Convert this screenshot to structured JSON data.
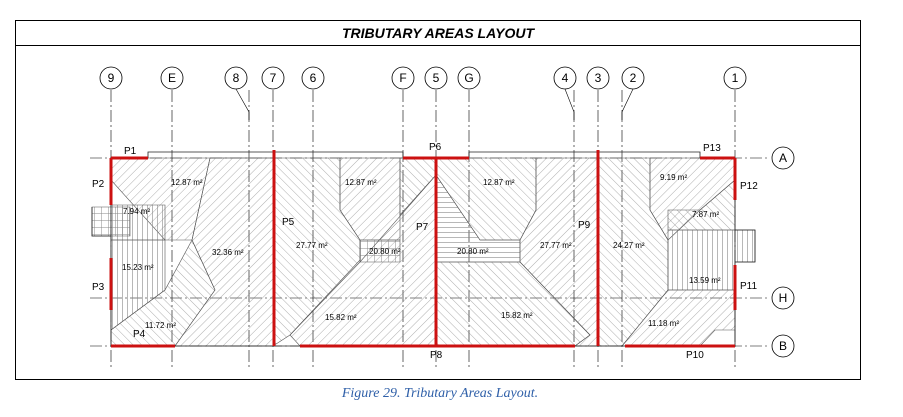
{
  "title": "TRIBUTARY AREAS LAYOUT",
  "caption": "Figure 29. Tributary Areas Layout.",
  "grid_columns": {
    "c9": "9",
    "cE": "E",
    "c8": "8",
    "c7": "7",
    "c6": "6",
    "cF": "F",
    "c5": "5",
    "cG": "G",
    "c4": "4",
    "c3": "3",
    "c2": "2",
    "c1": "1"
  },
  "grid_rows": {
    "rA": "A",
    "rH": "H",
    "rB": "B"
  },
  "panels": {
    "P1": "P1",
    "P2": "P2",
    "P3": "P3",
    "P4": "P4",
    "P5": "P5",
    "P6": "P6",
    "P7": "P7",
    "P8": "P8",
    "P9": "P9",
    "P10": "P10",
    "P11": "P11",
    "P12": "P12",
    "P13": "P13"
  },
  "areas": {
    "a1": "12.87 m²",
    "a2": "7.94 m²",
    "a3": "15.23 m²",
    "a4": "11.72 m²",
    "a5": "32.36 m²",
    "a6": "12.87 m²",
    "a7": "27.77 m²",
    "a8": "20.80 m²",
    "a9": "15.82 m²",
    "a10": "12.87 m²",
    "a11": "20.80 m²",
    "a12": "27.77 m²",
    "a13": "15.82 m²",
    "a14": "24.27 m²",
    "a15": "9.19 m²",
    "a16": "7.87 m²",
    "a17": "13.59 m²",
    "a18": "11.18 m²"
  },
  "colors": {
    "wall": "#cc1111",
    "line": "#000000",
    "caption": "#2e5fa8"
  }
}
